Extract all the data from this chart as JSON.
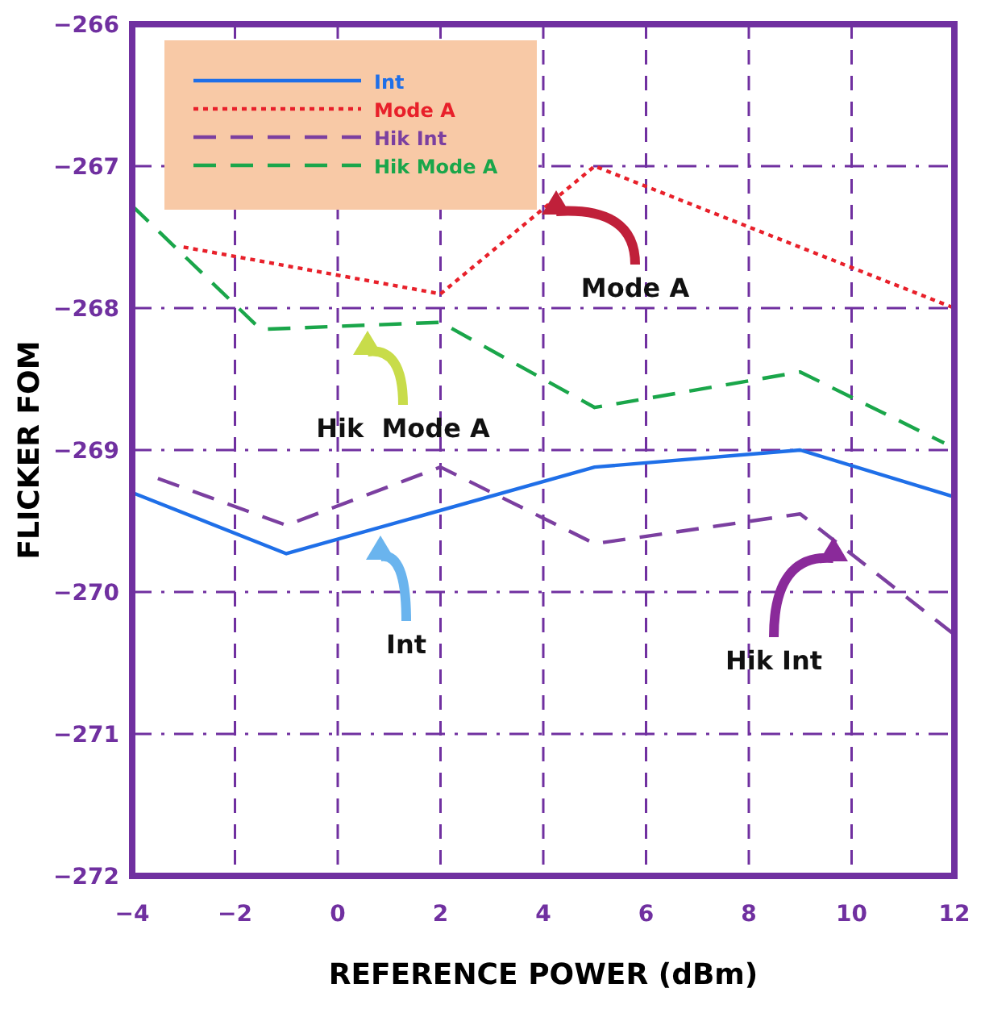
{
  "chart_data": {
    "type": "line",
    "xlabel": "REFERENCE POWER (dBm)",
    "ylabel": "FLICKER FOM",
    "xlim": [
      -4,
      12
    ],
    "xticks": [
      -4,
      -2,
      0,
      2,
      4,
      6,
      8,
      10,
      12
    ],
    "ylim": [
      -272,
      -266
    ],
    "yticks": [
      -272,
      -271,
      -270,
      -269,
      -268,
      -267,
      -266
    ],
    "grid": true,
    "legend": "top left",
    "marker": "none",
    "series": [
      {
        "name": "Int",
        "color": "#1f6fe8",
        "line_style": "solid",
        "x": [
          -4,
          -1,
          5,
          9,
          12
        ],
        "values": [
          -269.3,
          -269.73,
          -269.12,
          -269.0,
          -269.33
        ]
      },
      {
        "name": "Mode A",
        "color": "#e8202a",
        "line_style": "dotted",
        "x": [
          -3,
          2,
          5,
          12
        ],
        "values": [
          -267.57,
          -267.9,
          -267.0,
          -268.0
        ]
      },
      {
        "name": "Hik Int",
        "color": "#7b3fa0",
        "line_style": "dashed",
        "x": [
          -3.5,
          -1,
          2,
          5,
          9,
          12
        ],
        "values": [
          -269.2,
          -269.53,
          -269.12,
          -269.66,
          -269.45,
          -270.3
        ]
      },
      {
        "name": "Hik Mode A",
        "color": "#1aa64a",
        "line_style": "dashed",
        "x": [
          -4,
          -1.5,
          2,
          5,
          9,
          11.8
        ],
        "values": [
          -267.28,
          -268.15,
          -268.1,
          -268.7,
          -268.45,
          -268.95
        ]
      }
    ],
    "annotations": [
      "Mode A",
      "Hik  Mode A",
      "Int",
      "Hik Int"
    ]
  }
}
